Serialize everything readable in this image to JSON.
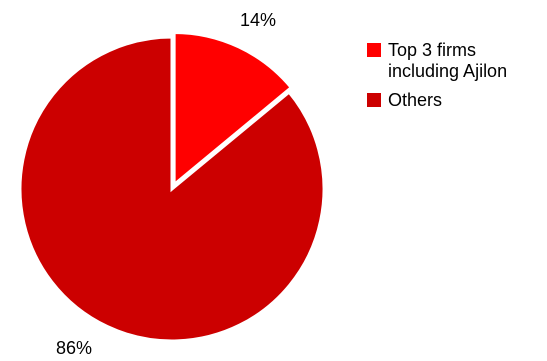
{
  "chart_data": {
    "type": "pie",
    "slices": [
      {
        "label": "Top 3 firms including Ajilon",
        "value": 14,
        "display": "14%",
        "color": "#ff0000"
      },
      {
        "label": "Others",
        "value": 86,
        "display": "86%",
        "color": "#cc0000"
      }
    ],
    "exploded_slice": "Top 3 firms including Ajilon",
    "legend_position": "right"
  }
}
